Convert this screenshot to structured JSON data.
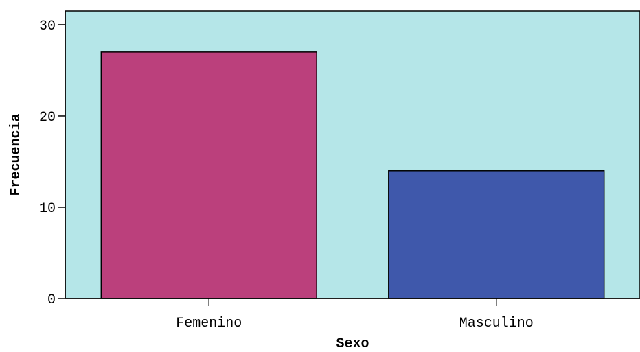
{
  "chart_data": {
    "type": "bar",
    "categories": [
      "Femenino",
      "Masculino"
    ],
    "values": [
      27,
      14
    ],
    "xlabel": "Sexo",
    "ylabel": "Frecuencia",
    "ylim": [
      0,
      31.5
    ],
    "yticks": [
      0,
      10,
      20,
      30
    ],
    "grid": false,
    "colors": {
      "plot_background": "#b5e6e8",
      "bars": [
        "#bb407c",
        "#3f58ab"
      ],
      "bar_outline": "#000000"
    }
  }
}
